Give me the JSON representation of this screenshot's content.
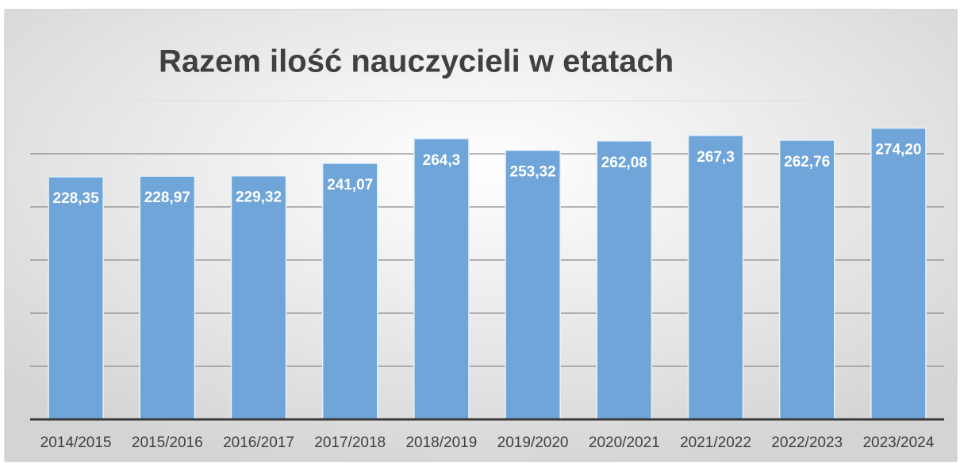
{
  "chart_data": {
    "type": "bar",
    "title": "Razem ilość nauczycieli w etatach",
    "categories": [
      "2014/2015",
      "2015/2016",
      "2016/2017",
      "2017/2018",
      "2018/2019",
      "2019/2020",
      "2020/2021",
      "2021/2022",
      "2022/2023",
      "2023/2024"
    ],
    "values": [
      228.35,
      228.97,
      229.32,
      241.07,
      264.3,
      253.32,
      262.08,
      267.3,
      262.76,
      274.2
    ],
    "value_labels": [
      "228,35",
      "228,97",
      "229,32",
      "241,07",
      "264,3",
      "253,32",
      "262,08",
      "267,3",
      "262,76",
      "274,20"
    ],
    "color": "#6fa5d9",
    "ylim": [
      0,
      300
    ],
    "yticks": [
      0,
      50,
      100,
      150,
      200,
      250,
      300
    ],
    "grid": true
  }
}
